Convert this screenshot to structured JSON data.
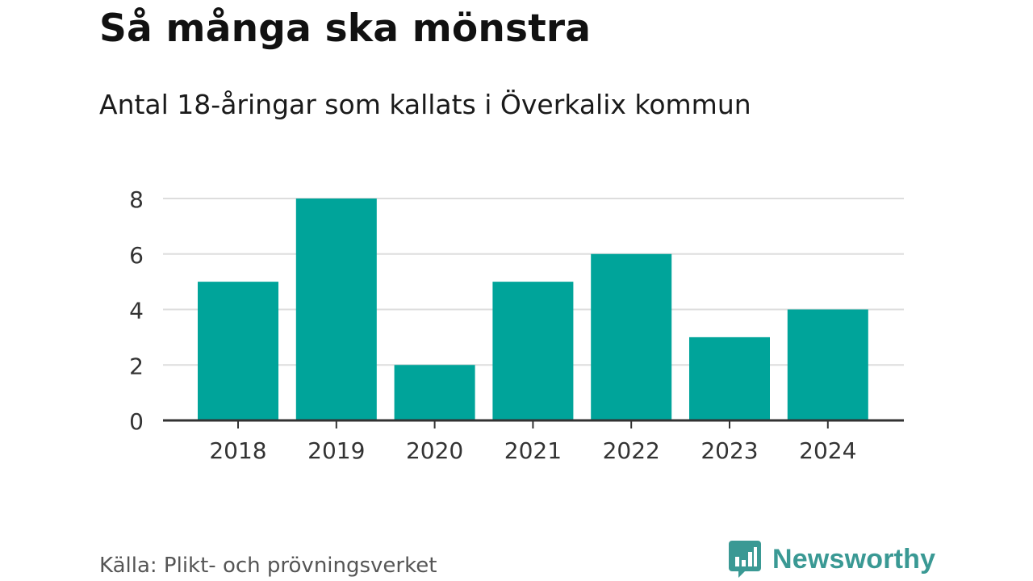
{
  "title": "Så många ska mönstra",
  "subtitle": "Antal 18-åringar som kallats i Överkalix kommun",
  "source": "Källa: Plikt- och prövningsverket",
  "brand": {
    "name": "Newsworthy",
    "icon": "newsworthy-logo-icon",
    "color": "#3a9994"
  },
  "chart_data": {
    "type": "bar",
    "categories": [
      "2018",
      "2019",
      "2020",
      "2021",
      "2022",
      "2023",
      "2024"
    ],
    "values": [
      5,
      8,
      2,
      5,
      6,
      3,
      4
    ],
    "yticks": [
      "0",
      "2",
      "4",
      "6",
      "8"
    ],
    "ylim": [
      0,
      8
    ],
    "grid": true,
    "bar_color": "#00a49a",
    "grid_color": "#dddddd",
    "axis_color": "#333333"
  }
}
